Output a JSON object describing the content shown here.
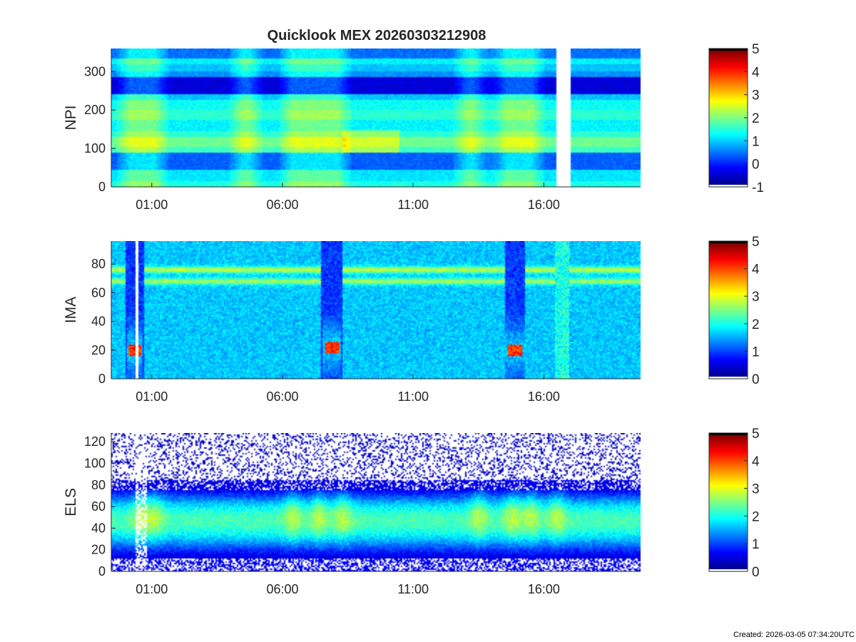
{
  "figure": {
    "title": "Quicklook MEX 20260303212908",
    "footer": "Created: 2026-03-05 07:34:20UTC"
  },
  "colors": {
    "colormap": [
      "#00008f",
      "#0000ff",
      "#0080ff",
      "#00ffff",
      "#80ff80",
      "#ffff00",
      "#ff8000",
      "#ff0000",
      "#800000"
    ],
    "axis": "#262626",
    "background": "#ffffff"
  },
  "chart_data": [
    {
      "type": "heatmap",
      "name": "NPI",
      "ylabel": "NPI",
      "ylim": [
        0,
        360
      ],
      "yticks": [
        0,
        100,
        200,
        300
      ],
      "xticks": [
        "01:00",
        "06:00",
        "11:00",
        "16:00"
      ],
      "xlim_hours": [
        -0.55,
        19.7
      ],
      "xtick_hours": [
        1,
        6,
        11,
        16
      ],
      "data_gaps_hours": [
        [
          16.5,
          17.0
        ],
        [
          -0.55,
          -0.55
        ]
      ],
      "colorbar": {
        "ticks": [
          -1,
          0,
          1,
          2,
          3,
          4,
          5
        ],
        "range": [
          -1,
          5
        ]
      },
      "bands": [
        {
          "y": [
            0,
            15
          ],
          "value": 1.4
        },
        {
          "y": [
            15,
            45
          ],
          "value": 1.1
        },
        {
          "y": [
            45,
            90
          ],
          "value": 0.3
        },
        {
          "y": [
            90,
            105
          ],
          "value": 1.6
        },
        {
          "y": [
            105,
            130
          ],
          "value": 1.9
        },
        {
          "y": [
            130,
            145
          ],
          "value": 1.5
        },
        {
          "y": [
            145,
            175
          ],
          "value": 1.2
        },
        {
          "y": [
            175,
            200
          ],
          "value": 1.5
        },
        {
          "y": [
            200,
            225
          ],
          "value": 1.3
        },
        {
          "y": [
            225,
            240
          ],
          "value": 0.9
        },
        {
          "y": [
            240,
            285
          ],
          "value": -0.5
        },
        {
          "y": [
            285,
            300
          ],
          "value": 0.6
        },
        {
          "y": [
            300,
            320
          ],
          "value": 0.9
        },
        {
          "y": [
            320,
            335
          ],
          "value": 1.2
        },
        {
          "y": [
            335,
            360
          ],
          "value": 0.4
        }
      ],
      "events_hours": [
        0.3,
        1.0,
        4.6,
        6.5,
        7.2,
        8.0,
        13.2,
        14.7,
        15.4
      ]
    },
    {
      "type": "heatmap",
      "name": "IMA",
      "ylabel": "IMA",
      "ylim": [
        0,
        96
      ],
      "yticks": [
        0,
        20,
        40,
        60,
        80
      ],
      "xticks": [
        "01:00",
        "06:00",
        "11:00",
        "16:00"
      ],
      "xlim_hours": [
        -0.55,
        19.7
      ],
      "xtick_hours": [
        1,
        6,
        11,
        16
      ],
      "data_gaps_hours": [
        [
          0.4,
          0.5
        ],
        [
          2.7,
          2.75
        ]
      ],
      "colorbar": {
        "ticks": [
          0,
          1,
          2,
          3,
          4,
          5
        ],
        "range": [
          0,
          5
        ]
      },
      "background_value": 1.6,
      "lines": [
        {
          "y": 76,
          "value": 2.6
        },
        {
          "y": 68,
          "value": 2.5
        }
      ],
      "dips": [
        {
          "center": 0.35,
          "width": 0.7,
          "peak_y": 20,
          "peak_value": 4.6
        },
        {
          "center": 7.9,
          "width": 0.8,
          "peak_y": 22,
          "peak_value": 4.5
        },
        {
          "center": 14.9,
          "width": 0.8,
          "peak_y": 20,
          "peak_value": 4.5
        }
      ],
      "spike_hours": [
        16.7
      ]
    },
    {
      "type": "heatmap",
      "name": "ELS",
      "ylabel": "ELS",
      "ylim": [
        0,
        128
      ],
      "yticks": [
        0,
        20,
        40,
        60,
        80,
        100,
        120
      ],
      "xticks": [
        "01:00",
        "06:00",
        "11:00",
        "16:00"
      ],
      "xlim_hours": [
        -0.55,
        19.7
      ],
      "xtick_hours": [
        1,
        6,
        11,
        16
      ],
      "colorbar": {
        "ticks": [
          0,
          1,
          2,
          3,
          4,
          5
        ],
        "range": [
          0,
          5
        ]
      },
      "core_y": 40,
      "core_value": 1.9,
      "noise_above": 85,
      "events_hours": [
        0.6,
        1.1,
        6.4,
        7.4,
        8.3,
        13.5,
        14.8,
        15.5,
        16.5
      ]
    }
  ]
}
